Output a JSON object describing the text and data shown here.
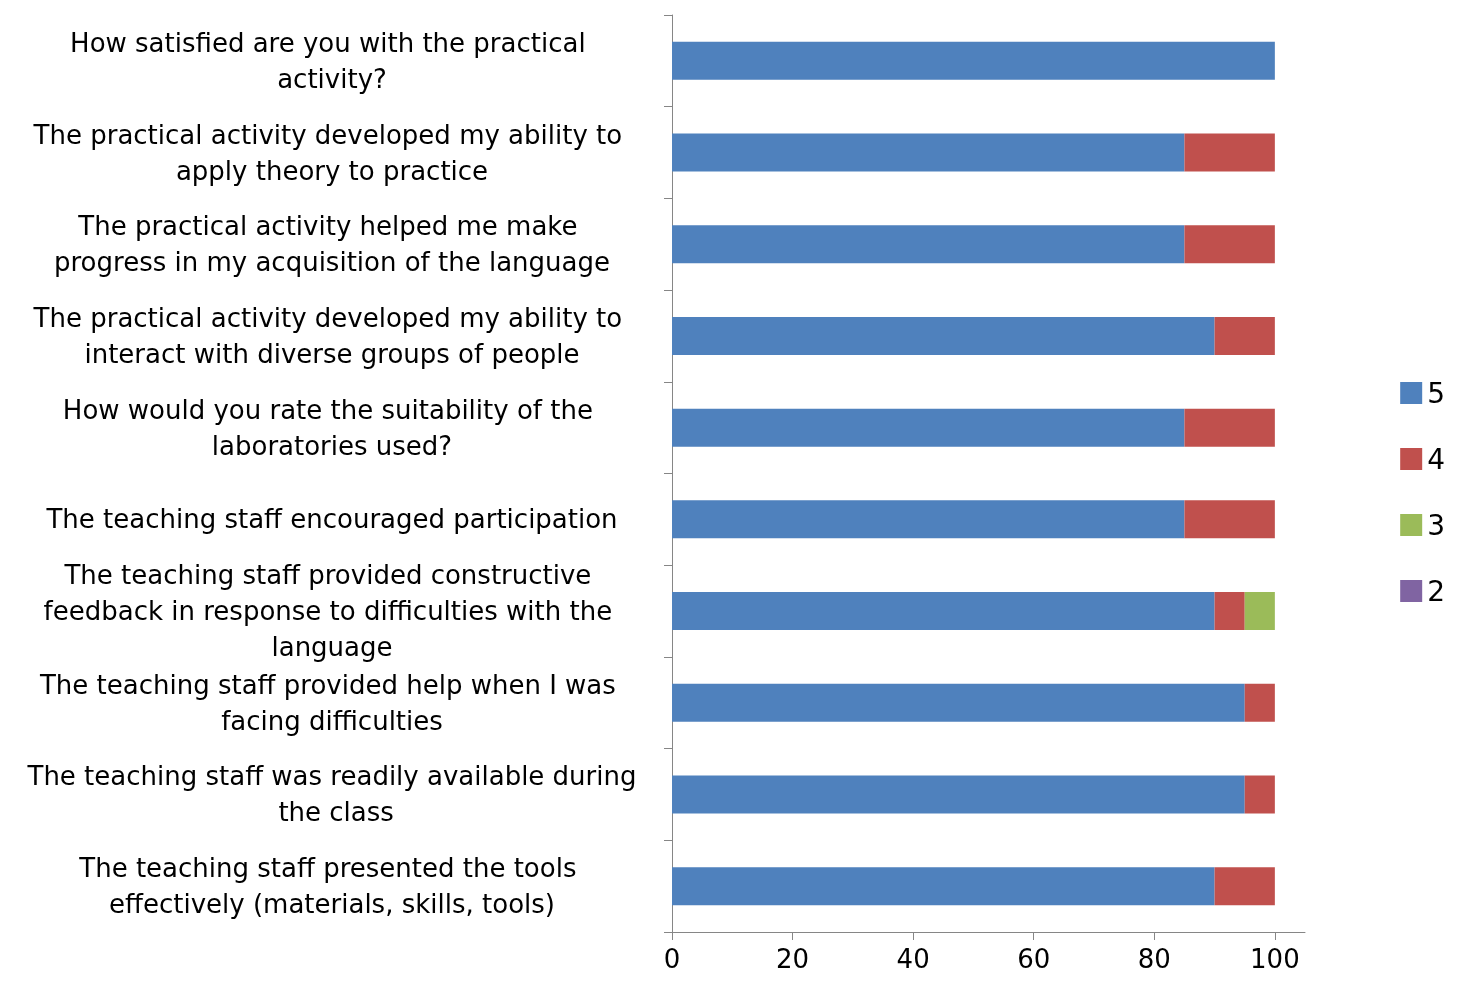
{
  "chart_data": {
    "type": "bar",
    "orientation": "horizontal",
    "stacked": true,
    "grid": false,
    "legend": "right",
    "categories": [
      "How satisfied are you with the practical activity?",
      "The practical activity developed my ability to apply theory to practice",
      "The practical activity helped me make progress in my acquisition of the language",
      "The practical activity developed my ability to interact with diverse groups of people",
      "How would you rate the suitability of the laboratories used?",
      "The teaching staff encouraged participation",
      "The teaching staff provided constructive feedback in response to difficulties with the language",
      "The teaching staff provided help when I was facing difficulties",
      "The teaching staff was readily available during the class",
      "The teaching staff presented the tools effectively (materials, skills, tools)"
    ],
    "series": [
      {
        "name": "5",
        "color": "#4f81bd",
        "values": [
          100,
          85,
          85,
          90,
          85,
          85,
          90,
          95,
          95,
          90
        ]
      },
      {
        "name": "4",
        "color": "#c0504d",
        "values": [
          0,
          15,
          15,
          10,
          15,
          15,
          5,
          5,
          5,
          10
        ]
      },
      {
        "name": "3",
        "color": "#9bbb59",
        "values": [
          0,
          0,
          0,
          0,
          0,
          0,
          5,
          0,
          0,
          0
        ]
      },
      {
        "name": "2",
        "color": "#8064a2",
        "values": [
          0,
          0,
          0,
          0,
          0,
          0,
          0,
          0,
          0,
          0
        ]
      }
    ],
    "xlim": [
      0,
      105
    ],
    "xticks": [
      0,
      20,
      40,
      60,
      80,
      100
    ]
  }
}
